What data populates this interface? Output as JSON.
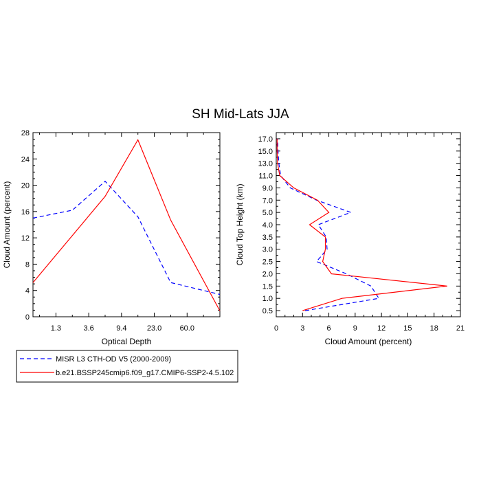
{
  "figure": {
    "title": "SH Mid-Lats JJA"
  },
  "legend": {
    "placement": "bottom-left",
    "entries": [
      {
        "label": "MISR L3 CTH-OD V5 (2000-2009)",
        "color": "#0000ff",
        "dash": "dashed"
      },
      {
        "label": "b.e21.BSSP245cmip6.f09_g17.CMIP6-SSP2-4.5.102",
        "color": "#ff0000",
        "dash": "solid"
      }
    ]
  },
  "chart_data": [
    {
      "type": "line",
      "xlabel": "Optical Depth",
      "ylabel": "Cloud Amount (percent)",
      "x_scale": "category",
      "x_tick_labels": [
        "1.3",
        "3.6",
        "9.4",
        "23.0",
        "60.0"
      ],
      "x_range": [
        0.3,
        6.0
      ],
      "ylim": [
        0,
        28
      ],
      "y_ticks": [
        0,
        4,
        8,
        12,
        16,
        20,
        24,
        28
      ],
      "grid": false,
      "series": [
        {
          "name": "MISR L3 CTH-OD V5 (2000-2009)",
          "color": "#0000ff",
          "dash": "dashed",
          "x": [
            0.3,
            1.5,
            2.5,
            3.5,
            4.5,
            6.0
          ],
          "y": [
            15.0,
            16.2,
            20.6,
            15.2,
            5.2,
            3.4
          ]
        },
        {
          "name": "b.e21.BSSP245cmip6.f09_g17.CMIP6-SSP2-4.5.102",
          "color": "#ff0000",
          "dash": "solid",
          "x": [
            0.3,
            2.5,
            3.5,
            4.5,
            6.0
          ],
          "y": [
            5.2,
            18.3,
            26.9,
            14.7,
            0.9
          ]
        }
      ]
    },
    {
      "type": "line",
      "xlabel": "Cloud Amount (percent)",
      "ylabel": "Cloud Top Height (km)",
      "xlim": [
        0,
        21
      ],
      "x_ticks": [
        0,
        3,
        6,
        9,
        12,
        15,
        18,
        21
      ],
      "y_scale": "category",
      "y_tick_labels": [
        "0.5",
        "1.0",
        "1.5",
        "2.0",
        "2.5",
        "3.0",
        "3.5",
        "4.0",
        "5.0",
        "7.0",
        "9.0",
        "11.0",
        "13.0",
        "15.0",
        "17.0"
      ],
      "grid": false,
      "series": [
        {
          "name": "MISR L3 CTH-OD V5 (2000-2009)",
          "color": "#0000ff",
          "dash": "dashed",
          "x": [
            3.3,
            11.7,
            10.8,
            8.0,
            4.6,
            5.8,
            5.7,
            4.8,
            8.5,
            4.6,
            1.6,
            0.5,
            0.3,
            0.2,
            0.15
          ],
          "y": [
            "0.5",
            "1.0",
            "1.5",
            "2.0",
            "2.5",
            "3.0",
            "3.5",
            "4.0",
            "5.0",
            "7.0",
            "9.0",
            "11.0",
            "13.0",
            "15.0",
            "17.0"
          ]
        },
        {
          "name": "b.e21.BSSP245cmip6.f09_g17.CMIP6-SSP2-4.5.102",
          "color": "#ff0000",
          "dash": "solid",
          "x": [
            3.0,
            7.5,
            19.5,
            6.3,
            5.3,
            5.6,
            5.6,
            3.8,
            6.0,
            4.7,
            2.0,
            0.4,
            0.15,
            0.1,
            0.1
          ],
          "y": [
            "0.5",
            "1.0",
            "1.5",
            "2.0",
            "2.5",
            "3.0",
            "3.5",
            "4.0",
            "5.0",
            "7.0",
            "9.0",
            "11.0",
            "13.0",
            "15.0",
            "17.0"
          ]
        }
      ]
    }
  ]
}
